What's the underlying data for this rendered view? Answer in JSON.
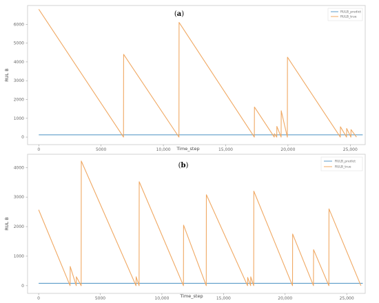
{
  "chart_data": [
    {
      "type": "line",
      "title": "",
      "panel_label": "a",
      "xlabel": "Time_step",
      "ylabel": "RUL B",
      "xlim": [
        -900,
        26200
      ],
      "ylim": [
        -400,
        7000
      ],
      "x_ticks": [
        0,
        5000,
        10000,
        15000,
        20000,
        25000
      ],
      "x_tick_labels": [
        "0",
        "5000",
        "10,000",
        "15,000",
        "20,000",
        "25,000"
      ],
      "y_ticks": [
        0,
        1000,
        2000,
        3000,
        4000,
        5000,
        6000
      ],
      "y_tick_labels": [
        "0",
        "1000",
        "2000",
        "3000",
        "4000",
        "5000",
        "6000"
      ],
      "grid": false,
      "legend_position": "top-right",
      "legend": [
        "RULB_predict",
        "RULB_true"
      ],
      "colors": {
        "RULB_predict": "#5b9bc8",
        "RULB_true": "#f0a862"
      },
      "series": [
        {
          "name": "RULB_predict",
          "x": [
            0,
            26000
          ],
          "y": [
            120,
            120
          ]
        },
        {
          "name": "RULB_true",
          "x": [
            0,
            6800,
            6810,
            11250,
            11260,
            17300,
            17310,
            18900,
            18910,
            19100,
            19110,
            19450,
            19460,
            19950,
            19960,
            24200,
            24210,
            24700,
            24710,
            25050,
            25060,
            25500
          ],
          "y": [
            6800,
            0,
            4400,
            0,
            6100,
            0,
            1600,
            0,
            180,
            0,
            570,
            0,
            1400,
            0,
            4250,
            0,
            550,
            0,
            460,
            0,
            400,
            0
          ]
        }
      ]
    },
    {
      "type": "line",
      "title": "",
      "panel_label": "b",
      "xlabel": "Time_step",
      "ylabel": "RUL B",
      "xlim": [
        -900,
        26500
      ],
      "ylim": [
        -260,
        4450
      ],
      "x_ticks": [
        0,
        5000,
        10000,
        15000,
        20000,
        25000
      ],
      "x_tick_labels": [
        "0",
        "5000",
        "10,000",
        "15,000",
        "20,000",
        "25,000"
      ],
      "y_ticks": [
        0,
        1000,
        2000,
        3000,
        4000
      ],
      "y_tick_labels": [
        "0",
        "1000",
        "2000",
        "3000",
        "4000"
      ],
      "grid": false,
      "legend_position": "top-right",
      "legend": [
        "RULB_predict",
        "RULB_true"
      ],
      "colors": {
        "RULB_predict": "#5b9bc8",
        "RULB_true": "#f0a862"
      },
      "series": [
        {
          "name": "RULB_predict",
          "x": [
            0,
            26300
          ],
          "y": [
            80,
            80
          ]
        },
        {
          "name": "RULB_true",
          "x": [
            0,
            2550,
            2560,
            3050,
            3060,
            3450,
            3460,
            7900,
            7910,
            8150,
            8160,
            11750,
            11760,
            13600,
            13610,
            16950,
            16960,
            17200,
            17210,
            17450,
            17460,
            20600,
            20610,
            22300,
            22310,
            23550,
            23560,
            26150
          ],
          "y": [
            2570,
            0,
            650,
            0,
            300,
            0,
            4220,
            0,
            300,
            0,
            3520,
            0,
            2050,
            0,
            3080,
            0,
            280,
            0,
            300,
            0,
            3200,
            0,
            1750,
            0,
            1220,
            0,
            2600,
            0
          ]
        }
      ]
    }
  ]
}
